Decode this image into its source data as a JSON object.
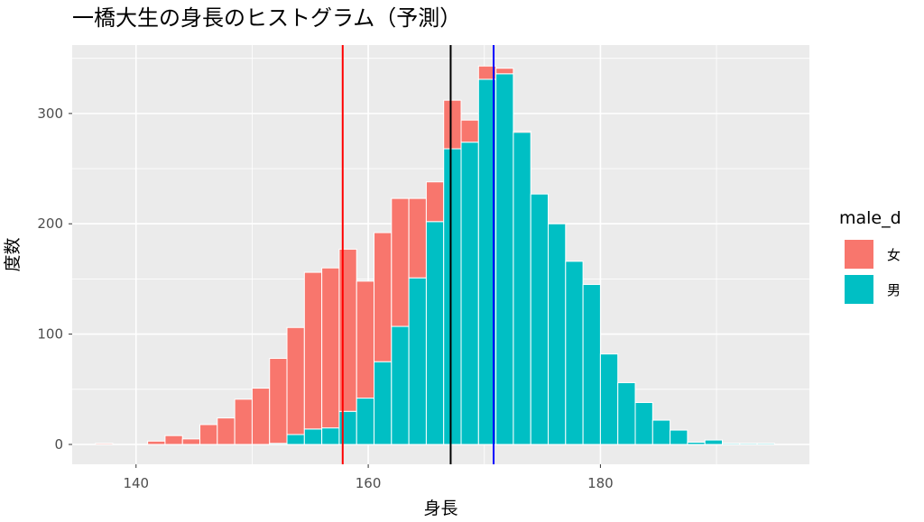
{
  "chart_data": {
    "type": "bar",
    "subtype": "stacked-histogram",
    "title": "一橋大生の身長のヒストグラム（予測）",
    "xlabel": "身長",
    "ylabel": "度数",
    "xlim": [
      134.5,
      198
    ],
    "ylim": [
      -18,
      362
    ],
    "xticks": [
      140,
      160,
      180
    ],
    "yticks": [
      0,
      100,
      200,
      300
    ],
    "grid": true,
    "bin_width": 1.5,
    "bins": [
      137.25,
      138.75,
      140.25,
      141.75,
      143.25,
      144.75,
      146.25,
      147.75,
      149.25,
      150.75,
      152.25,
      153.75,
      155.25,
      156.75,
      158.25,
      159.75,
      161.25,
      162.75,
      164.25,
      165.75,
      167.25,
      168.75,
      170.25,
      171.75,
      173.25,
      174.75,
      176.25,
      177.75,
      179.25,
      180.75,
      182.25,
      183.75,
      185.25,
      186.75,
      188.25,
      189.75,
      191.25,
      192.75,
      194.25
    ],
    "series": [
      {
        "name": "女",
        "color": "#F8766D",
        "values": [
          1,
          0,
          0,
          3,
          8,
          5,
          18,
          24,
          41,
          51,
          77,
          97,
          142,
          145,
          147,
          106,
          117,
          116,
          72,
          36,
          44,
          20,
          12,
          5,
          1,
          0,
          0,
          0,
          0,
          0,
          0,
          0,
          0,
          0,
          0,
          0,
          0,
          0,
          0
        ]
      },
      {
        "name": "男",
        "color": "#00BFC4",
        "values": [
          0,
          0,
          0,
          0,
          0,
          0,
          0,
          0,
          0,
          0,
          1,
          9,
          14,
          15,
          30,
          42,
          75,
          107,
          151,
          202,
          268,
          274,
          331,
          336,
          283,
          227,
          200,
          166,
          145,
          82,
          56,
          38,
          22,
          13,
          2,
          4,
          1,
          1,
          1
        ]
      }
    ],
    "vlines": [
      {
        "x": 157.8,
        "color": "#FF0000"
      },
      {
        "x": 167.1,
        "color": "#000000"
      },
      {
        "x": 170.8,
        "color": "#0000FF"
      }
    ],
    "legend": {
      "title": "male_d",
      "position": "right"
    },
    "panel_background": "#EBEBEB",
    "grid_color": "#FFFFFF"
  }
}
